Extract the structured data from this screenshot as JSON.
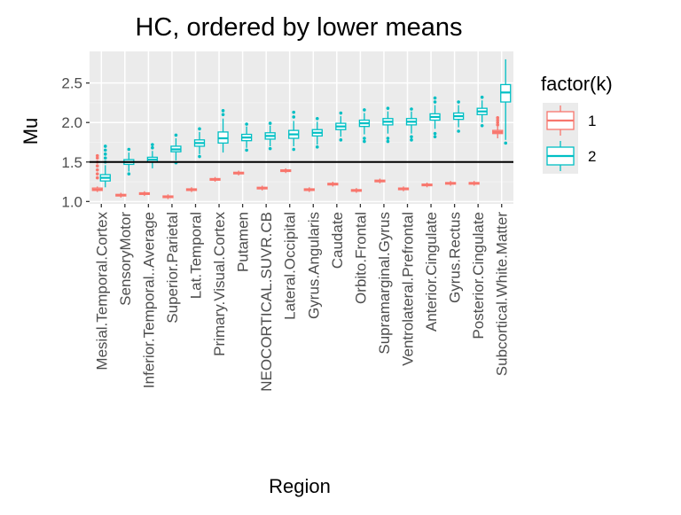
{
  "chart_data": {
    "type": "boxplot",
    "title": "HC, ordered by lower means",
    "xlabel": "Region",
    "ylabel": "Mu",
    "ylim": [
      0.97,
      2.9
    ],
    "yticks": [
      1.0,
      1.5,
      2.0,
      2.5
    ],
    "yticklabels": [
      "1.0",
      "1.5",
      "2.0",
      "2.5"
    ],
    "reference_line": 1.5,
    "grid": true,
    "legend": {
      "title": "factor(k)",
      "position": "right",
      "entries": [
        "1",
        "2"
      ]
    },
    "colors": {
      "1": "#F8766D",
      "2": "#00BFC4"
    },
    "categories": [
      "Mesial.Temporal.Cortex",
      "SensoryMotor",
      "Inferior.Temporal..Average",
      "Superior.Parietal",
      "Lat.Temporal",
      "Primary.Visual.Cortex",
      "Putamen",
      "NEOCORTICAL.SUVR.CB",
      "Lateral.Occipital",
      "Gyrus.Angularis",
      "Caudate",
      "Orbito.Frontal",
      "Supramarginal.Gyrus",
      "Ventrolateral.Prefrontal",
      "Anterior.Cingulate",
      "Gyrus.Rectus",
      "Posterior.Cingulate",
      "Subcortical.White.Matter"
    ],
    "series": [
      {
        "name": "1",
        "color": "#F8766D",
        "boxes": [
          {
            "lw": 1.12,
            "q1": 1.14,
            "med": 1.15,
            "q3": 1.17,
            "uw": 1.19,
            "out": [
              1.3,
              1.35,
              1.4,
              1.45,
              1.5,
              1.55,
              1.58
            ]
          },
          {
            "lw": 1.05,
            "q1": 1.07,
            "med": 1.08,
            "q3": 1.09,
            "uw": 1.11,
            "out": []
          },
          {
            "lw": 1.07,
            "q1": 1.09,
            "med": 1.1,
            "q3": 1.11,
            "uw": 1.13,
            "out": []
          },
          {
            "lw": 1.03,
            "q1": 1.05,
            "med": 1.06,
            "q3": 1.07,
            "uw": 1.09,
            "out": []
          },
          {
            "lw": 1.12,
            "q1": 1.14,
            "med": 1.15,
            "q3": 1.16,
            "uw": 1.18,
            "out": []
          },
          {
            "lw": 1.25,
            "q1": 1.27,
            "med": 1.28,
            "q3": 1.29,
            "uw": 1.31,
            "out": []
          },
          {
            "lw": 1.33,
            "q1": 1.35,
            "med": 1.36,
            "q3": 1.37,
            "uw": 1.39,
            "out": []
          },
          {
            "lw": 1.14,
            "q1": 1.16,
            "med": 1.17,
            "q3": 1.18,
            "uw": 1.2,
            "out": []
          },
          {
            "lw": 1.36,
            "q1": 1.38,
            "med": 1.39,
            "q3": 1.4,
            "uw": 1.42,
            "out": []
          },
          {
            "lw": 1.12,
            "q1": 1.14,
            "med": 1.15,
            "q3": 1.16,
            "uw": 1.18,
            "out": []
          },
          {
            "lw": 1.19,
            "q1": 1.21,
            "med": 1.22,
            "q3": 1.23,
            "uw": 1.25,
            "out": []
          },
          {
            "lw": 1.11,
            "q1": 1.13,
            "med": 1.14,
            "q3": 1.15,
            "uw": 1.17,
            "out": []
          },
          {
            "lw": 1.23,
            "q1": 1.25,
            "med": 1.26,
            "q3": 1.27,
            "uw": 1.29,
            "out": []
          },
          {
            "lw": 1.13,
            "q1": 1.15,
            "med": 1.16,
            "q3": 1.17,
            "uw": 1.19,
            "out": []
          },
          {
            "lw": 1.18,
            "q1": 1.2,
            "med": 1.21,
            "q3": 1.22,
            "uw": 1.24,
            "out": []
          },
          {
            "lw": 1.2,
            "q1": 1.22,
            "med": 1.23,
            "q3": 1.24,
            "uw": 1.26,
            "out": []
          },
          {
            "lw": 1.2,
            "q1": 1.22,
            "med": 1.23,
            "q3": 1.24,
            "uw": 1.26,
            "out": []
          },
          {
            "lw": 1.8,
            "q1": 1.86,
            "med": 1.88,
            "q3": 1.9,
            "uw": 1.95,
            "out": [
              1.97,
              2.0,
              2.03,
              2.06
            ]
          }
        ]
      },
      {
        "name": "2",
        "color": "#00BFC4",
        "boxes": [
          {
            "lw": 1.18,
            "q1": 1.26,
            "med": 1.3,
            "q3": 1.34,
            "uw": 1.46,
            "out": [
              1.5,
              1.55,
              1.6,
              1.65,
              1.7
            ]
          },
          {
            "lw": 1.38,
            "q1": 1.47,
            "med": 1.5,
            "q3": 1.53,
            "uw": 1.62,
            "out": [
              1.35,
              1.66
            ]
          },
          {
            "lw": 1.42,
            "q1": 1.5,
            "med": 1.53,
            "q3": 1.56,
            "uw": 1.64,
            "out": [
              1.68,
              1.72
            ]
          },
          {
            "lw": 1.52,
            "q1": 1.63,
            "med": 1.66,
            "q3": 1.7,
            "uw": 1.8,
            "out": [
              1.49,
              1.84
            ]
          },
          {
            "lw": 1.6,
            "q1": 1.7,
            "med": 1.74,
            "q3": 1.78,
            "uw": 1.88,
            "out": [
              1.57,
              1.92
            ]
          },
          {
            "lw": 1.62,
            "q1": 1.74,
            "med": 1.8,
            "q3": 1.88,
            "uw": 2.05,
            "out": [
              2.1,
              2.15
            ]
          },
          {
            "lw": 1.68,
            "q1": 1.77,
            "med": 1.81,
            "q3": 1.85,
            "uw": 1.95,
            "out": [
              1.65,
              1.98
            ]
          },
          {
            "lw": 1.7,
            "q1": 1.79,
            "med": 1.83,
            "q3": 1.87,
            "uw": 1.96,
            "out": [
              1.67,
              1.99
            ]
          },
          {
            "lw": 1.7,
            "q1": 1.8,
            "med": 1.85,
            "q3": 1.9,
            "uw": 2.02,
            "out": [
              1.66,
              2.07,
              2.13
            ]
          },
          {
            "lw": 1.72,
            "q1": 1.83,
            "med": 1.87,
            "q3": 1.91,
            "uw": 2.01,
            "out": [
              1.69,
              2.05
            ]
          },
          {
            "lw": 1.82,
            "q1": 1.91,
            "med": 1.95,
            "q3": 1.99,
            "uw": 2.08,
            "out": [
              1.78,
              2.12
            ]
          },
          {
            "lw": 1.85,
            "q1": 1.95,
            "med": 1.99,
            "q3": 2.03,
            "uw": 2.12,
            "out": [
              1.76,
              1.8,
              2.16
            ]
          },
          {
            "lw": 1.86,
            "q1": 1.97,
            "med": 2.01,
            "q3": 2.05,
            "uw": 2.14,
            "out": [
              1.76,
              1.8,
              2.18
            ]
          },
          {
            "lw": 1.86,
            "q1": 1.97,
            "med": 2.01,
            "q3": 2.05,
            "uw": 2.14,
            "out": [
              1.78,
              1.82,
              2.17
            ]
          },
          {
            "lw": 1.92,
            "q1": 2.03,
            "med": 2.07,
            "q3": 2.11,
            "uw": 2.22,
            "out": [
              1.82,
              1.86,
              2.26,
              2.31
            ]
          },
          {
            "lw": 1.94,
            "q1": 2.04,
            "med": 2.08,
            "q3": 2.12,
            "uw": 2.22,
            "out": [
              1.89,
              2.26
            ]
          },
          {
            "lw": 2.0,
            "q1": 2.1,
            "med": 2.14,
            "q3": 2.18,
            "uw": 2.28,
            "out": [
              1.96,
              2.32
            ]
          },
          {
            "lw": 1.78,
            "q1": 2.26,
            "med": 2.38,
            "q3": 2.48,
            "uw": 2.8,
            "out": [
              1.74
            ]
          }
        ]
      }
    ]
  }
}
